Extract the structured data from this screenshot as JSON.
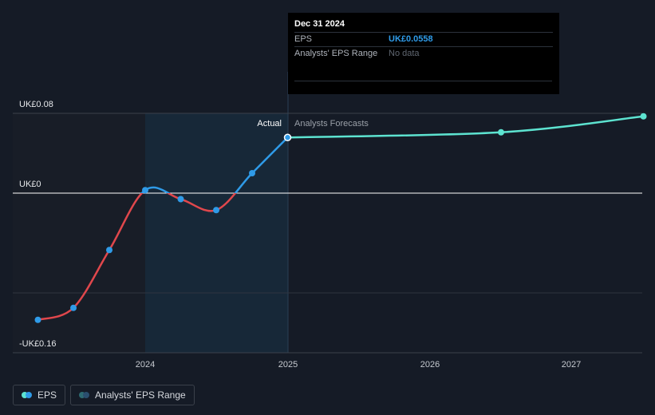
{
  "chart_data": {
    "type": "line",
    "y_axis_labels": [
      "UK£0.08",
      "UK£0",
      "-UK£0.16"
    ],
    "x_ticks": [
      "2024",
      "2025",
      "2026",
      "2027"
    ],
    "region_labels": {
      "actual": "Actual",
      "forecast": "Analysts Forecasts"
    },
    "series": [
      {
        "name": "EPS",
        "x": [
          "2023-04-01",
          "2023-07-01",
          "2023-10-01",
          "2024-01-01",
          "2024-04-01",
          "2024-07-01",
          "2024-10-01",
          "2024-12-31"
        ],
        "values": [
          -0.127,
          -0.115,
          -0.057,
          0.003,
          -0.006,
          -0.017,
          0.02,
          0.0558
        ],
        "colors": {
          "negative": "#e0474c",
          "positive": "#2f9be8"
        }
      },
      {
        "name": "Forecast",
        "x": [
          "2024-12-31",
          "2026-07-01",
          "2027-07-01"
        ],
        "values": [
          0.0558,
          0.061,
          0.077
        ],
        "color": "#5de3d0"
      }
    ],
    "colors": {
      "negative": "#e0474c",
      "actual": "#2f9be8",
      "forecast": "#5de3d0"
    }
  },
  "tooltip": {
    "date": "Dec 31 2024",
    "rows": [
      {
        "label": "EPS",
        "value": "UK£0.0558"
      },
      {
        "label": "Analysts' EPS Range",
        "value": "No data"
      }
    ]
  },
  "legend": [
    {
      "label": "EPS"
    },
    {
      "label": "Analysts' EPS Range"
    }
  ]
}
